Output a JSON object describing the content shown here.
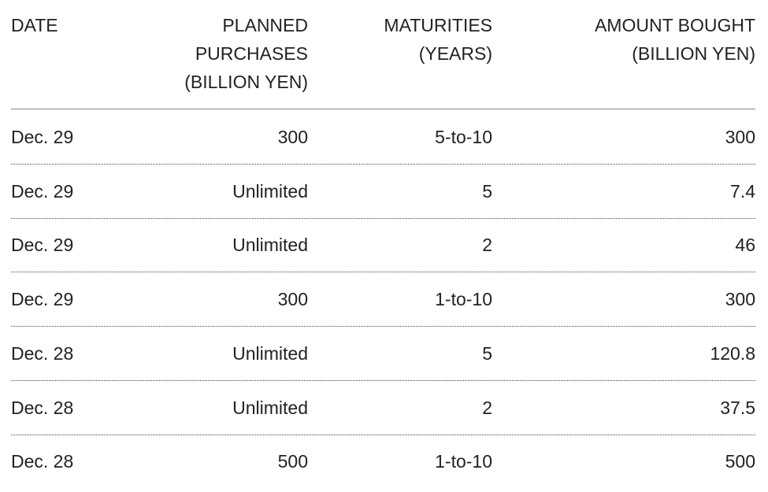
{
  "table": {
    "header": [
      [
        "DATE"
      ],
      [
        "PLANNED",
        "PURCHASES",
        "(BILLION YEN)"
      ],
      [
        "MATURITIES",
        "(YEARS)"
      ],
      [
        "AMOUNT BOUGHT",
        "(BILLION YEN)"
      ]
    ],
    "rows": [
      [
        "Dec. 29",
        "300",
        "5-to-10",
        "300"
      ],
      [
        "Dec. 29",
        "Unlimited",
        "5",
        "7.4"
      ],
      [
        "Dec. 29",
        "Unlimited",
        "2",
        "46"
      ],
      [
        "Dec. 29",
        "300",
        "1-to-10",
        "300"
      ],
      [
        "Dec. 28",
        "Unlimited",
        "5",
        "120.8"
      ],
      [
        "Dec. 28",
        "Unlimited",
        "2",
        "37.5"
      ],
      [
        "Dec. 28",
        "500",
        "1-to-10",
        "500"
      ]
    ]
  }
}
